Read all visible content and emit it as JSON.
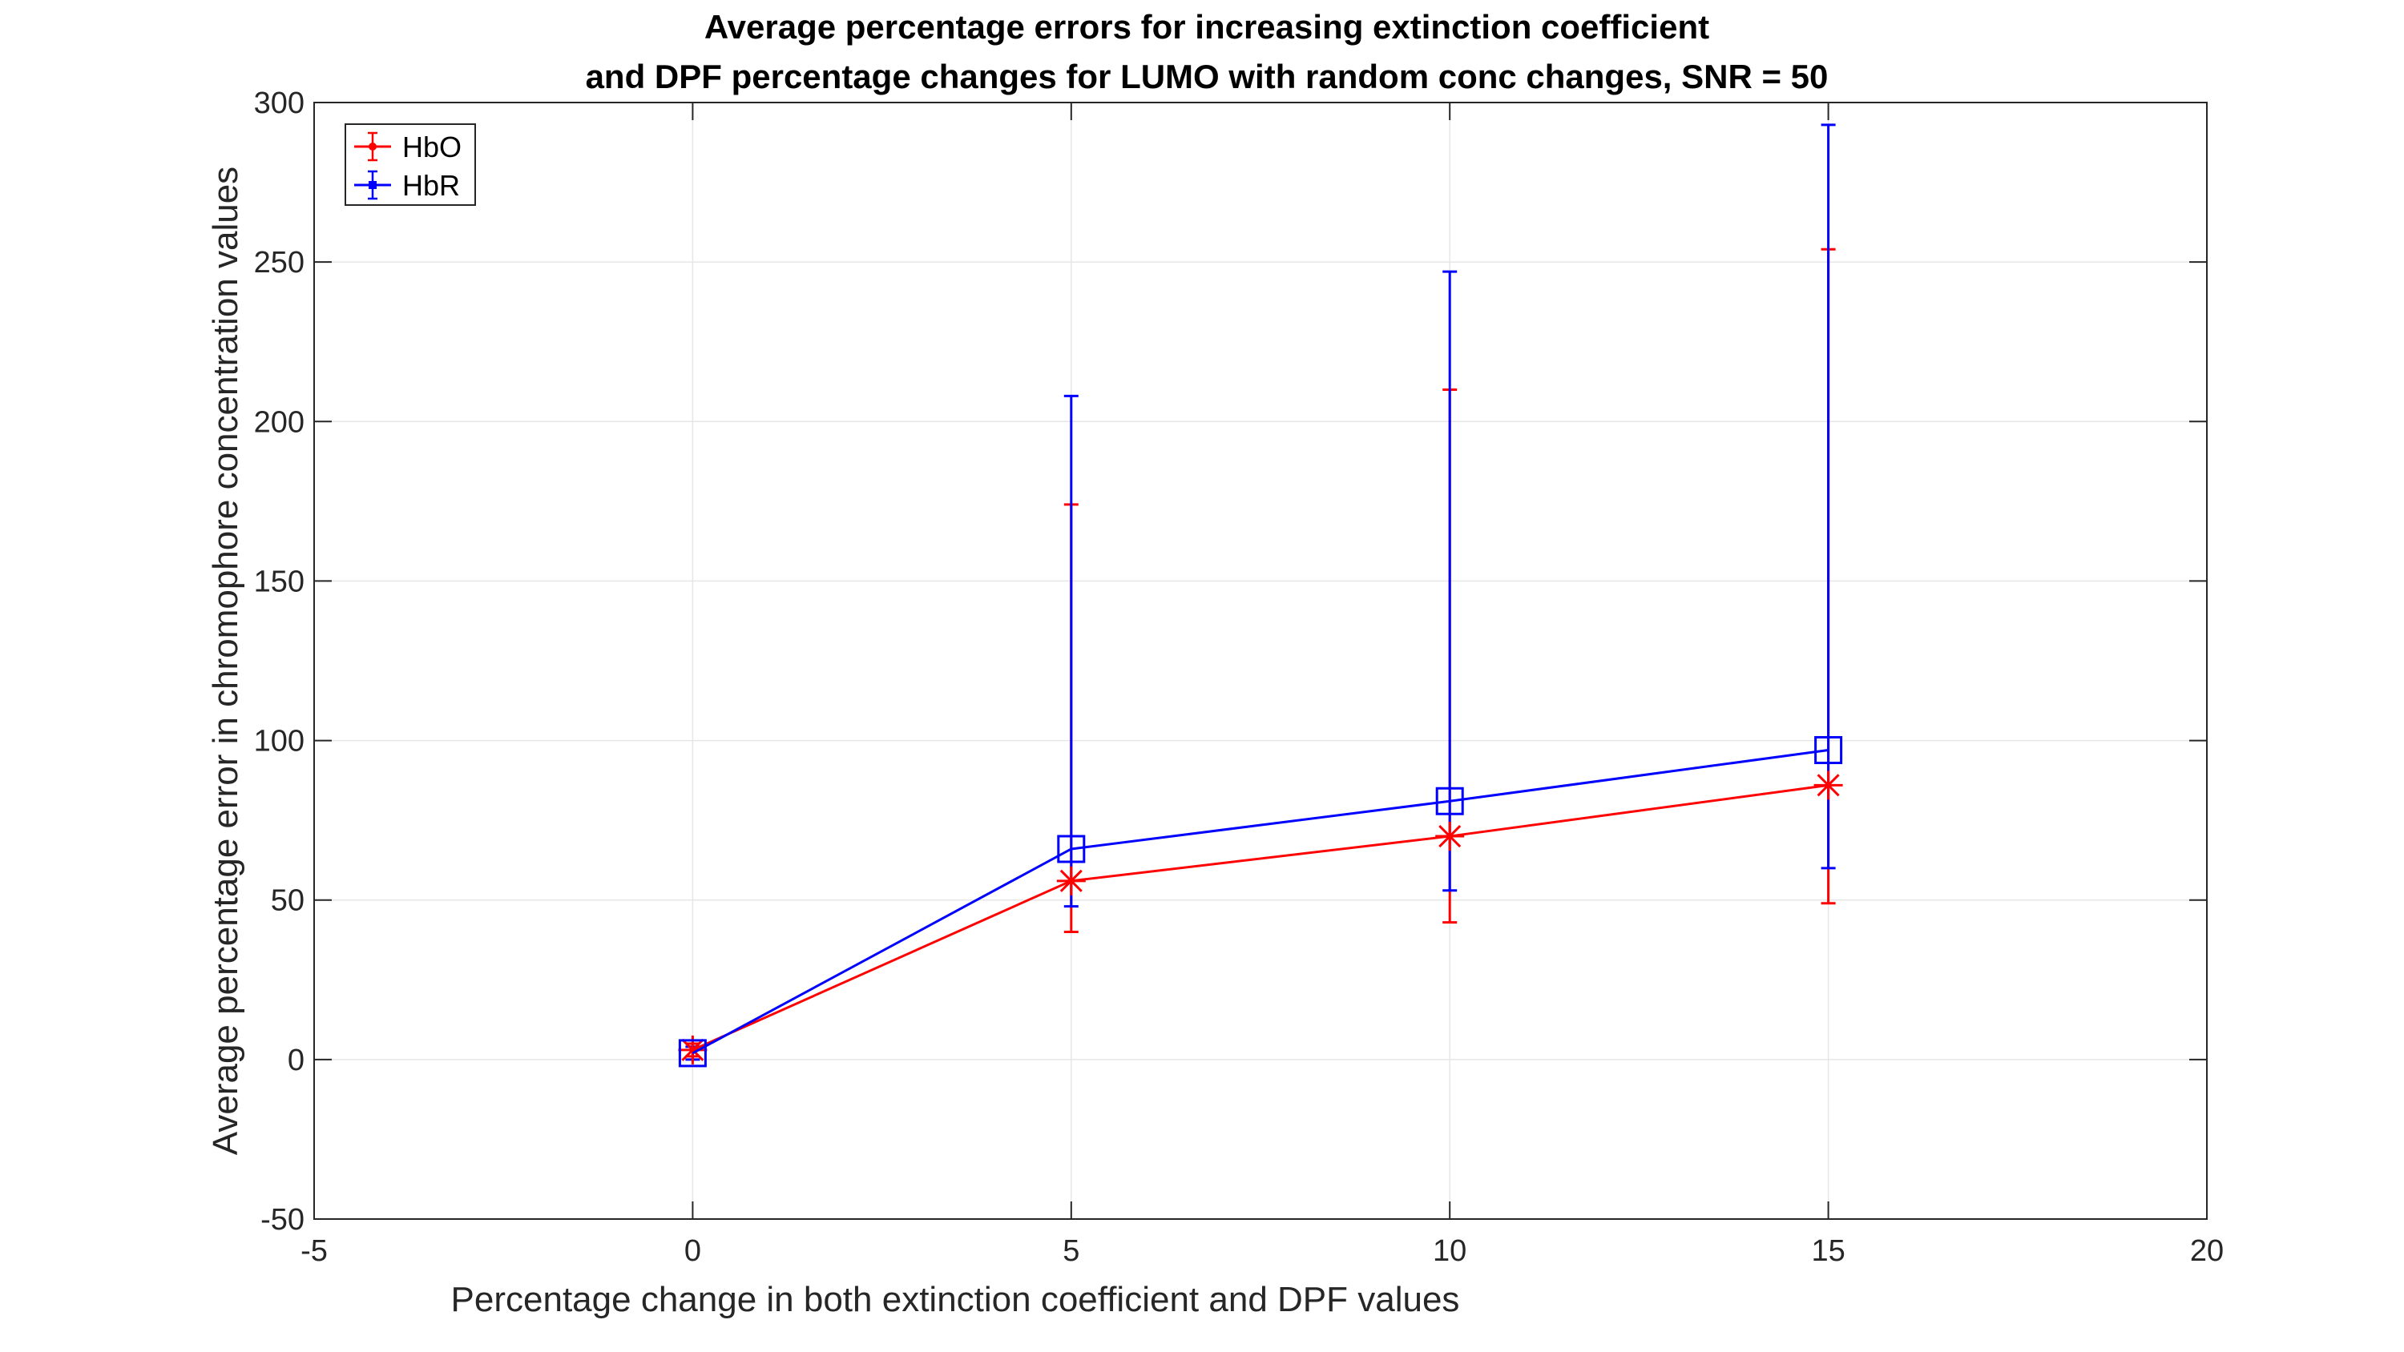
{
  "chart_data": {
    "type": "line",
    "title": [
      "Average percentage errors for increasing extinction coefficient",
      "and DPF percentage changes for LUMO with random conc changes, SNR = 50"
    ],
    "xlabel": "Percentage change in both extinction coefficient and DPF values",
    "ylabel": "Average percentage error in chromophore concentration values",
    "xlim": [
      -5,
      20
    ],
    "ylim": [
      -50,
      300
    ],
    "xticks": [
      -5,
      0,
      5,
      10,
      15,
      20
    ],
    "yticks": [
      -50,
      0,
      50,
      100,
      150,
      200,
      250,
      300
    ],
    "grid": true,
    "legend_position": "top-left",
    "x": [
      0,
      5,
      10,
      15
    ],
    "series": [
      {
        "name": "HbO",
        "color": "#ff0000",
        "marker": "asterisk",
        "values": [
          3,
          56,
          70,
          86
        ],
        "error_low": [
          1,
          40,
          43,
          49
        ],
        "error_high": [
          5,
          174,
          210,
          254
        ]
      },
      {
        "name": "HbR",
        "color": "#0000ff",
        "marker": "square",
        "values": [
          2,
          66,
          81,
          97
        ],
        "error_low": [
          0,
          48,
          53,
          60
        ],
        "error_high": [
          4,
          208,
          247,
          293
        ]
      }
    ]
  }
}
